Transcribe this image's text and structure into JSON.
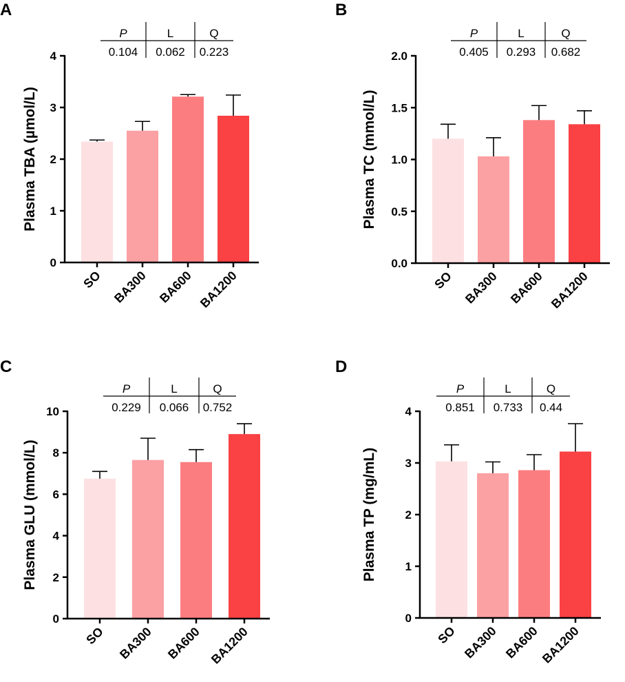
{
  "colors": {
    "SO": "#fde0e2",
    "BA300": "#fba0a3",
    "BA600": "#fc7d80",
    "BA1200": "#fa4143"
  },
  "chart_data": [
    {
      "panel": "A",
      "type": "bar",
      "ylabel": "Plasma TBA (µmol/L)",
      "categories": [
        "SO",
        "BA300",
        "BA600",
        "BA1200"
      ],
      "values": [
        2.34,
        2.55,
        3.21,
        2.84
      ],
      "errors": [
        0.03,
        0.18,
        0.04,
        0.4
      ],
      "ylim": [
        0,
        4
      ],
      "yticks": [
        0,
        1,
        2,
        3,
        4
      ],
      "tick_labels": [
        "0",
        "1",
        "2",
        "3",
        "4"
      ],
      "stats": {
        "headers": [
          "P",
          "L",
          "Q"
        ],
        "values": [
          "0.104",
          "0.062",
          "0.223"
        ]
      }
    },
    {
      "panel": "B",
      "type": "bar",
      "ylabel": "Plasma TC (mmol/L)",
      "categories": [
        "SO",
        "BA300",
        "BA600",
        "BA1200"
      ],
      "values": [
        1.2,
        1.03,
        1.38,
        1.34
      ],
      "errors": [
        0.14,
        0.18,
        0.14,
        0.13
      ],
      "ylim": [
        0,
        2.0
      ],
      "yticks": [
        0,
        0.5,
        1.0,
        1.5,
        2.0
      ],
      "tick_labels": [
        "0.0",
        "0.5",
        "1.0",
        "1.5",
        "2.0"
      ],
      "stats": {
        "headers": [
          "P",
          "L",
          "Q"
        ],
        "values": [
          "0.405",
          "0.293",
          "0.682"
        ]
      }
    },
    {
      "panel": "C",
      "type": "bar",
      "ylabel": "Plasma GLU (mmol/L)",
      "categories": [
        "SO",
        "BA300",
        "BA600",
        "BA1200"
      ],
      "values": [
        6.75,
        7.65,
        7.55,
        8.9
      ],
      "errors": [
        0.35,
        1.05,
        0.6,
        0.5
      ],
      "ylim": [
        0,
        10
      ],
      "yticks": [
        0,
        2,
        4,
        6,
        8,
        10
      ],
      "tick_labels": [
        "0",
        "2",
        "4",
        "6",
        "8",
        "10"
      ],
      "stats": {
        "headers": [
          "P",
          "L",
          "Q"
        ],
        "values": [
          "0.229",
          "0.066",
          "0.752"
        ]
      }
    },
    {
      "panel": "D",
      "type": "bar",
      "ylabel": "Plasma TP (mg/mL)",
      "categories": [
        "SO",
        "BA300",
        "BA600",
        "BA1200"
      ],
      "values": [
        3.03,
        2.8,
        2.86,
        3.22
      ],
      "errors": [
        0.32,
        0.22,
        0.3,
        0.54
      ],
      "ylim": [
        0,
        4
      ],
      "yticks": [
        0,
        1,
        2,
        3,
        4
      ],
      "tick_labels": [
        "0",
        "1",
        "2",
        "3",
        "4"
      ],
      "stats": {
        "headers": [
          "P",
          "L",
          "Q"
        ],
        "values": [
          "0.851",
          "0.733",
          "0.44"
        ]
      }
    }
  ]
}
